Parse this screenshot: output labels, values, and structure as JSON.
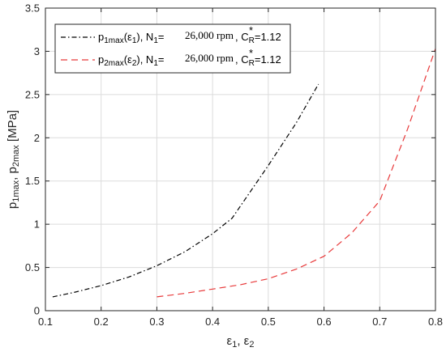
{
  "chart_data": {
    "type": "line",
    "title": "",
    "xlabel": {
      "base": "ε",
      "sub1": "1",
      "sep": ", ε",
      "sub2": "2"
    },
    "ylabel": {
      "p1": "p",
      "sub1": "1max",
      "sep": ", p",
      "sub2": "2max",
      "unit": " [MPa]"
    },
    "xlim": [
      0.1,
      0.8
    ],
    "ylim": [
      0,
      3.5
    ],
    "x_ticks": [
      0.1,
      0.2,
      0.3,
      0.4,
      0.5,
      0.6,
      0.7,
      0.8
    ],
    "x_tick_labels": [
      "0.1",
      "0.2",
      "0.3",
      "0.4",
      "0.5",
      "0.6",
      "0.7",
      "0.8"
    ],
    "y_ticks": [
      0,
      0.5,
      1,
      1.5,
      2,
      2.5,
      3,
      3.5
    ],
    "y_tick_labels": [
      "0",
      "0.5",
      "1",
      "1.5",
      "2",
      "2.5",
      "3",
      "3.5"
    ],
    "grid": true,
    "legend_position": "top-left",
    "series": [
      {
        "name": "p1max(ε1), N1= 26,000 rpm , CR*=1.12",
        "color": "#000000",
        "style": "dash-dot",
        "legend": {
          "p": "p",
          "sub": "1max",
          "arg": "(ε",
          "argsub": "1",
          "close": "), N",
          "nsub": "1",
          "eq": "=",
          "speed": "26,000 rpm",
          "c": ", C",
          "csup": "*",
          "csub": "R",
          "cval": "=1.12"
        },
        "x": [
          0.113,
          0.15,
          0.2,
          0.25,
          0.3,
          0.35,
          0.4,
          0.435,
          0.5,
          0.55,
          0.59
        ],
        "y": [
          0.16,
          0.21,
          0.29,
          0.39,
          0.52,
          0.68,
          0.89,
          1.07,
          1.68,
          2.17,
          2.62
        ]
      },
      {
        "name": "p2max(ε2), N1= 26,000 rpm , CR*=1.12",
        "color": "#e8393a",
        "style": "dashed",
        "legend": {
          "p": "p",
          "sub": "2max",
          "arg": "(ε",
          "argsub": "2",
          "close": "), N",
          "nsub": "1",
          "eq": "=",
          "speed": "26,000 rpm",
          "c": ", C",
          "csup": "*",
          "csub": "R",
          "cval": "=1.12"
        },
        "x": [
          0.3,
          0.35,
          0.4,
          0.45,
          0.5,
          0.55,
          0.6,
          0.65,
          0.7,
          0.75,
          0.8
        ],
        "y": [
          0.16,
          0.2,
          0.25,
          0.3,
          0.37,
          0.48,
          0.63,
          0.9,
          1.27,
          2.1,
          3.03
        ]
      }
    ]
  }
}
